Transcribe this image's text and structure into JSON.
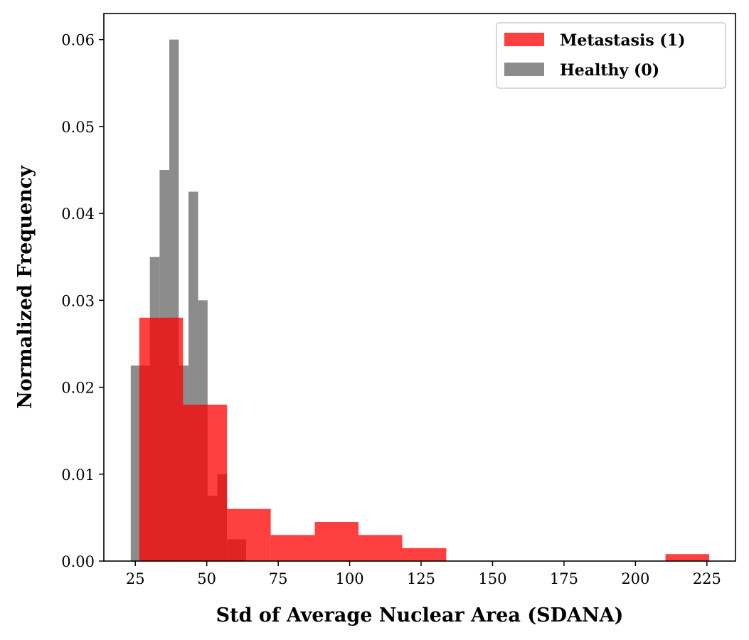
{
  "chart_data": {
    "type": "bar",
    "title": "",
    "xlabel": "Std of Average Nuclear Area (SDANA)",
    "ylabel": "Normalized Frequency",
    "xlim": [
      14,
      235
    ],
    "ylim": [
      0,
      0.063
    ],
    "xticks": [
      25,
      50,
      75,
      100,
      125,
      150,
      175,
      200,
      225
    ],
    "xtick_labels": [
      "25",
      "50",
      "75",
      "100",
      "125",
      "150",
      "175",
      "200",
      "225"
    ],
    "yticks": [
      0,
      0.01,
      0.02,
      0.03,
      0.04,
      0.05,
      0.06
    ],
    "ytick_labels": [
      "0.00",
      "0.01",
      "0.02",
      "0.03",
      "0.04",
      "0.05",
      "0.06"
    ],
    "legend_position": "top-right",
    "series": [
      {
        "name": "Healthy (0)",
        "color": "#808080",
        "opacity": 0.9,
        "bin_edges": [
          23.4,
          26.8,
          30.1,
          33.5,
          36.9,
          40.2,
          43.6,
          47.0,
          50.3,
          53.7,
          57.1,
          60.4,
          63.8
        ],
        "values": [
          0.0225,
          0.0225,
          0.035,
          0.045,
          0.06,
          0.0225,
          0.0425,
          0.03,
          0.0075,
          0.01,
          0.0025,
          0.0025
        ]
      },
      {
        "name": "Metastasis (1)",
        "color": "#ff0000",
        "opacity": 0.75,
        "bin_edges": [
          26.4,
          41.7,
          57.1,
          72.4,
          87.8,
          103.1,
          118.4,
          133.8,
          149.1,
          164.5,
          179.8,
          195.1,
          210.5,
          225.8
        ],
        "values": [
          0.028,
          0.018,
          0.006,
          0.003,
          0.0045,
          0.003,
          0.0015,
          0,
          0,
          0,
          0,
          0,
          0.0008
        ]
      }
    ]
  }
}
